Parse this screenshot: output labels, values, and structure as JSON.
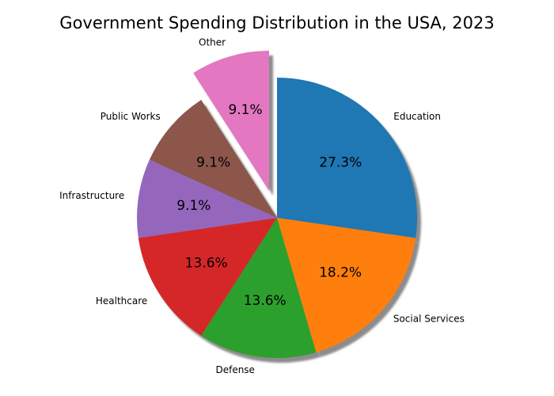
{
  "chart_data": {
    "type": "pie",
    "title": "Government Spending Distribution in the USA, 2023",
    "start_angle_deg": 90,
    "direction": "clockwise",
    "shadow": true,
    "slices": [
      {
        "label": "Education",
        "value": 27.3,
        "pct_text": "27.3%",
        "color": "#1f77b4",
        "explode": 0
      },
      {
        "label": "Social Services",
        "value": 18.2,
        "pct_text": "18.2%",
        "color": "#ff7f0e",
        "explode": 0
      },
      {
        "label": "Defense",
        "value": 13.6,
        "pct_text": "13.6%",
        "color": "#2ca02c",
        "explode": 0
      },
      {
        "label": "Healthcare",
        "value": 13.6,
        "pct_text": "13.6%",
        "color": "#d62728",
        "explode": 0
      },
      {
        "label": "Infrastructure",
        "value": 9.1,
        "pct_text": "9.1%",
        "color": "#9467bd",
        "explode": 0
      },
      {
        "label": "Public Works",
        "value": 9.1,
        "pct_text": "9.1%",
        "color": "#8c564b",
        "explode": 0
      },
      {
        "label": "Other",
        "value": 9.1,
        "pct_text": "9.1%",
        "color": "#e377c2",
        "explode": 0.2
      }
    ]
  }
}
